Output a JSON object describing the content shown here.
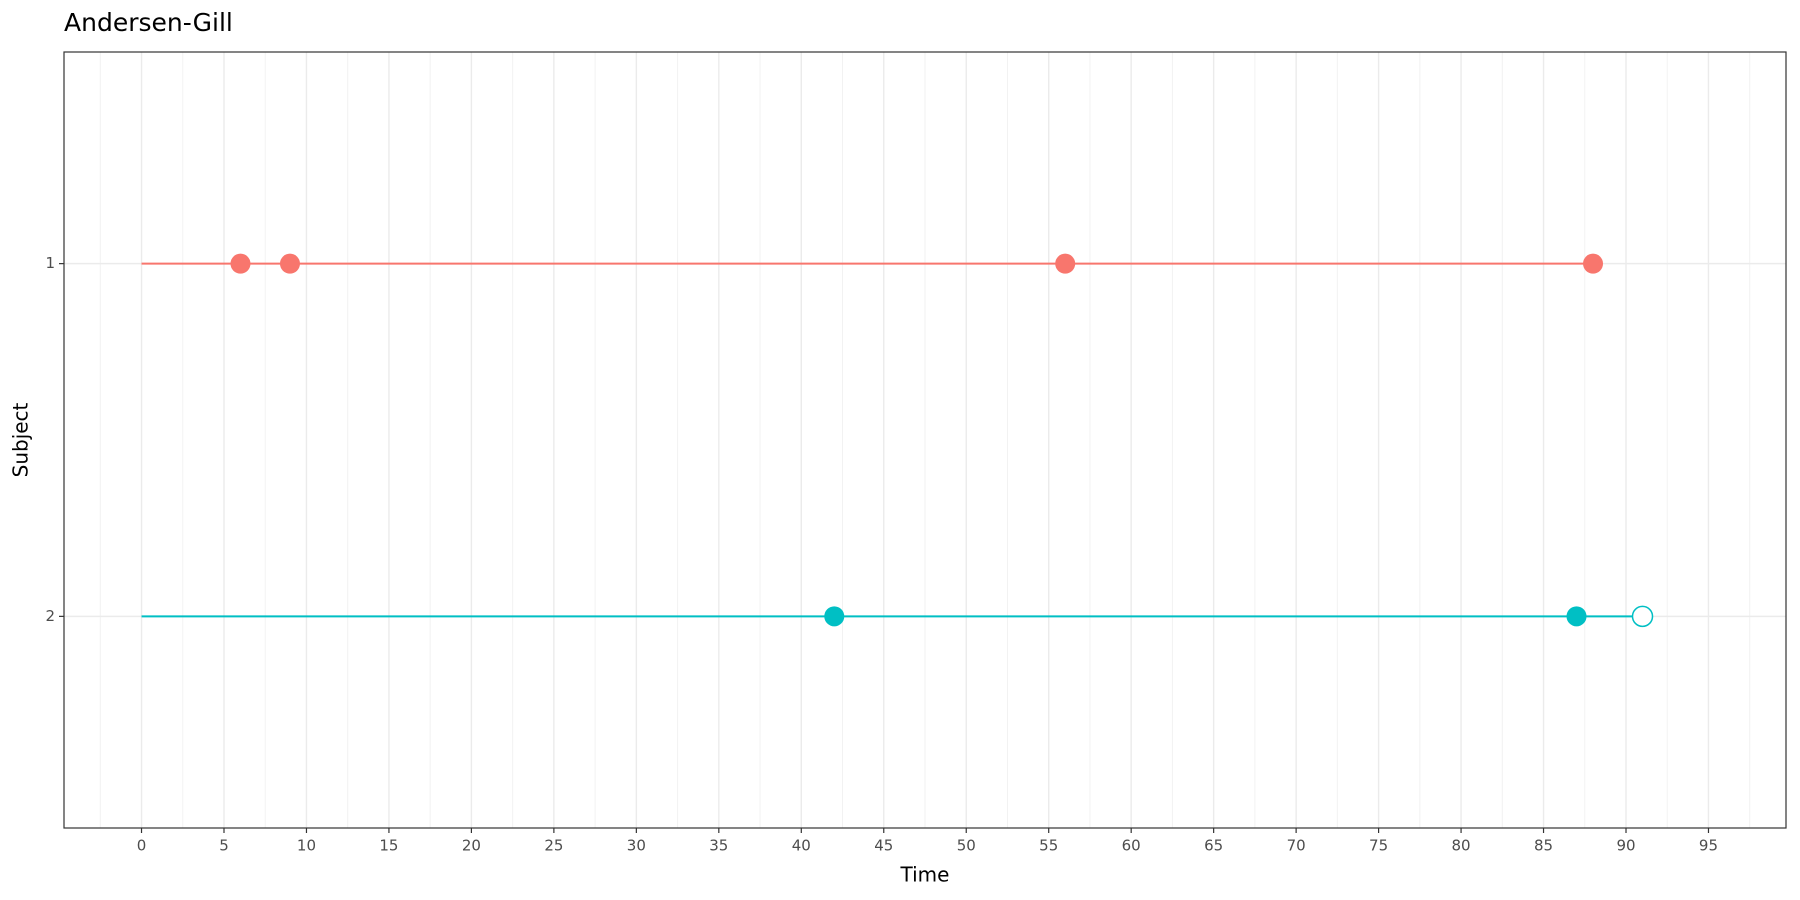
{
  "chart_data": {
    "type": "event-timeline",
    "title": "Andersen-Gill",
    "x_label": "Time",
    "y_label": "Subject",
    "categories": [
      "1",
      "2"
    ],
    "series": [
      {
        "color": "#f8766d",
        "start": 0,
        "times": [
          6,
          9,
          56,
          88
        ],
        "status": [
          1,
          1,
          1,
          1
        ]
      },
      {
        "color": "#00bfc4",
        "start": 0,
        "times": [
          42,
          87,
          91
        ],
        "status": [
          1,
          1,
          0
        ]
      }
    ],
    "xlim": [
      -4.7,
      99.7
    ],
    "xticks": [
      0,
      5,
      10,
      15,
      20,
      25,
      30,
      35,
      40,
      45,
      50,
      55,
      60,
      65,
      70,
      75,
      80,
      85,
      90,
      95
    ],
    "grid": true
  }
}
